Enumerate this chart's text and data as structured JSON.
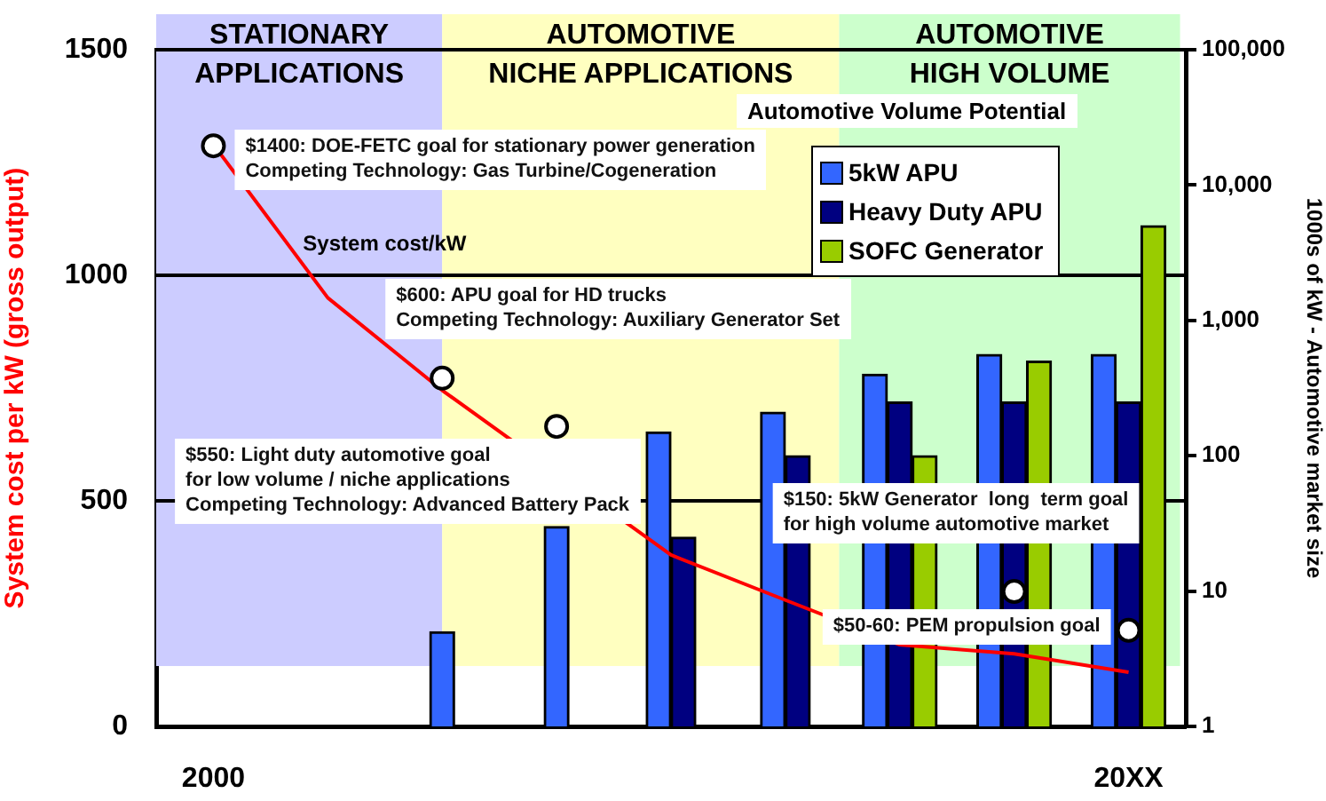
{
  "chart_data": {
    "type": "bar",
    "ylabel": "System cost per kW (gross output)",
    "y2label": "1000s of kW - Automotive market size",
    "legend_title": "Automotive Volume Potential",
    "categories": [
      "2000",
      null,
      null,
      null,
      null,
      null,
      null,
      null,
      "20XX"
    ],
    "ylim": [
      0,
      1500
    ],
    "yticks": [
      0,
      500,
      1000,
      1500
    ],
    "y2lim": [
      1,
      100000
    ],
    "y2ticks": [
      1,
      10,
      100,
      {
        "value": 1000,
        "label": "1,000"
      },
      {
        "value": 10000,
        "label": "10,000"
      },
      {
        "value": 100000,
        "label": "100,000"
      }
    ],
    "log": "y2",
    "grid": "y",
    "legend": "top right",
    "series": [
      {
        "name": "5kW APU",
        "color": "#3366ff",
        "axis": "y2",
        "values": [
          null,
          null,
          5,
          30,
          150,
          210,
          400,
          560,
          560
        ]
      },
      {
        "name": "Heavy Duty APU",
        "color": "#000080",
        "axis": "y2",
        "values": [
          null,
          null,
          null,
          null,
          25,
          100,
          250,
          250,
          250
        ]
      },
      {
        "name": "SOFC Generator",
        "color": "#99cc00",
        "axis": "y2",
        "values": [
          null,
          null,
          null,
          null,
          null,
          null,
          100,
          500,
          5000
        ]
      },
      {
        "type": "scatter",
        "color": "#ffffff",
        "marker": "circle",
        "axis": "y",
        "values": [
          1287,
          null,
          772,
          665,
          null,
          null,
          null,
          299,
          213
        ]
      },
      {
        "name": "System cost/kW",
        "type": "line",
        "color": "#ff0000",
        "axis": "y",
        "marker": "none",
        "values": [
          1290,
          950,
          745,
          null,
          380,
          280,
          181,
          161,
          120
        ]
      }
    ],
    "annotations": [
      "STATIONARY\nAPPLICATIONS",
      "AUTOMOTIVE\nNICHE APPLICATIONS",
      "AUTOMOTIVE\nHIGH VOLUME",
      "$1400: DOE-FETC goal for stationary power generation\nCompeting Technology: Gas Turbine/Cogeneration",
      "$600: APU goal for HD trucks\nCompeting Technology: Auxiliary Generator Set",
      "$550: Light duty automotive goal\nfor low volume / niche applications\nCompeting Technology: Advanced Battery Pack",
      "$150: 5kW Generator  long  term goal\nfor high volume automotive market",
      "$50-60: PEM propulsion goal"
    ]
  }
}
